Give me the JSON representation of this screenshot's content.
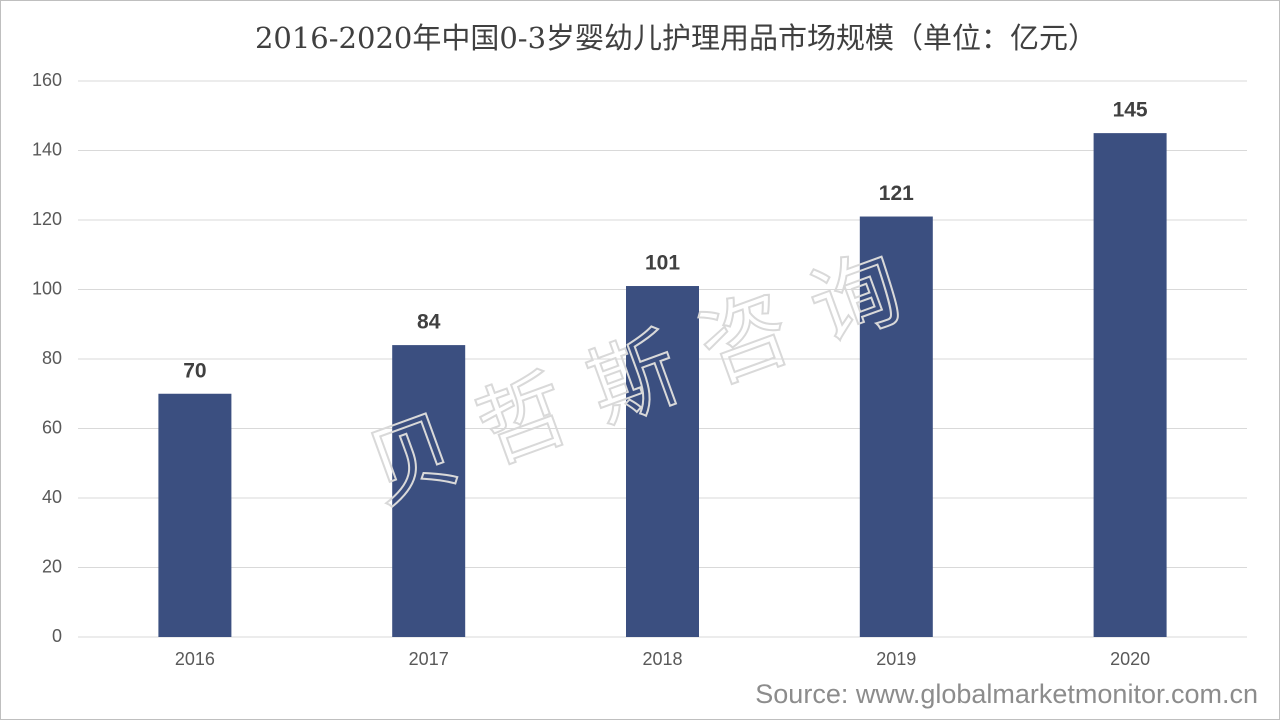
{
  "chart_data": {
    "type": "bar",
    "title": "2016-2020年中国0-3岁婴幼儿护理用品市场规模（单位：亿元）",
    "categories": [
      "2016",
      "2017",
      "2018",
      "2019",
      "2020"
    ],
    "values": [
      70,
      84,
      101,
      121,
      145
    ],
    "color": "#3b4f80",
    "ylim": [
      0,
      160
    ],
    "yticks": [
      0,
      20,
      40,
      60,
      80,
      100,
      120,
      140,
      160
    ],
    "grid": true,
    "watermark": "贝哲斯咨询",
    "source": "Source: www.globalmarketmonitor.com.cn"
  }
}
